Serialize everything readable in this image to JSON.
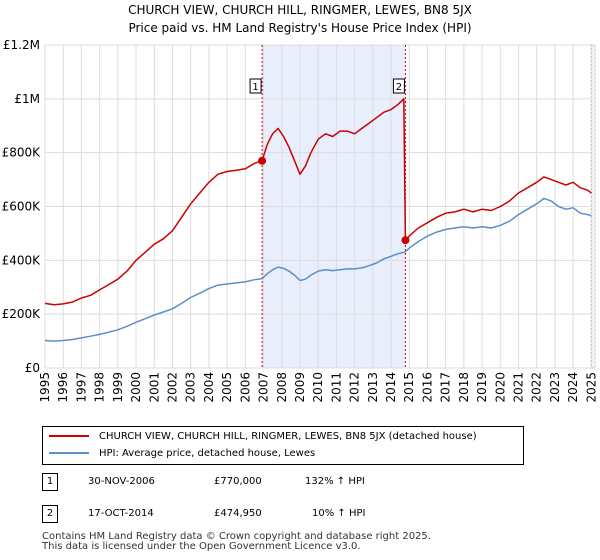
{
  "title": {
    "line1": "CHURCH VIEW, CHURCH HILL, RINGMER, LEWES, BN8 5JX",
    "line2": "Price paid vs. HM Land Registry's House Price Index (HPI)"
  },
  "colors": {
    "property": "#cc0000",
    "hpi": "#5b8fc7",
    "shade": "#e8eefb",
    "grid": "#dddddd",
    "marker_line": "#cc0000"
  },
  "chart_data": {
    "type": "line",
    "title": "CHURCH VIEW, CHURCH HILL, RINGMER, LEWES, BN8 5JX",
    "xlabel": "",
    "ylabel": "",
    "xlim": [
      1995,
      2025.2
    ],
    "ylim": [
      0,
      1200000
    ],
    "grid": true,
    "y_ticks": [
      0,
      200000,
      400000,
      600000,
      800000,
      1000000,
      1200000
    ],
    "y_tick_labels": [
      "£0",
      "£200K",
      "£400K",
      "£600K",
      "£800K",
      "£1M",
      "£1.2M"
    ],
    "x_ticks": [
      1995,
      1996,
      1997,
      1998,
      1999,
      2000,
      2001,
      2002,
      2003,
      2004,
      2005,
      2006,
      2007,
      2008,
      2009,
      2010,
      2011,
      2012,
      2013,
      2014,
      2015,
      2016,
      2017,
      2018,
      2019,
      2020,
      2021,
      2022,
      2023,
      2024,
      2025
    ],
    "x_tick_labels": [
      "1995",
      "1996",
      "1997",
      "1998",
      "1999",
      "2000",
      "2001",
      "2002",
      "2003",
      "2004",
      "2005",
      "2006",
      "2007",
      "2008",
      "2009",
      "2010",
      "2011",
      "2012",
      "2013",
      "2014",
      "2015",
      "2016",
      "2017",
      "2018",
      "2019",
      "2020",
      "2021",
      "2022",
      "2023",
      "2024",
      "2025"
    ],
    "shaded_range": [
      2006.92,
      2014.79
    ],
    "series": [
      {
        "name": "CHURCH VIEW, CHURCH HILL, RINGMER, LEWES, BN8 5JX (detached house)",
        "x": [
          1995.0,
          1995.5,
          1996.0,
          1996.5,
          1997.0,
          1997.5,
          1998.0,
          1998.5,
          1999.0,
          1999.5,
          2000.0,
          2000.5,
          2001.0,
          2001.5,
          2002.0,
          2002.5,
          2003.0,
          2003.5,
          2004.0,
          2004.5,
          2005.0,
          2005.5,
          2006.0,
          2006.5,
          2006.92,
          2007.2,
          2007.5,
          2007.8,
          2008.1,
          2008.4,
          2008.7,
          2009.0,
          2009.3,
          2009.6,
          2010.0,
          2010.4,
          2010.8,
          2011.2,
          2011.6,
          2012.0,
          2012.4,
          2012.8,
          2013.2,
          2013.6,
          2014.0,
          2014.4,
          2014.7,
          2014.79,
          2015.0,
          2015.5,
          2016.0,
          2016.5,
          2017.0,
          2017.5,
          2018.0,
          2018.5,
          2019.0,
          2019.5,
          2020.0,
          2020.5,
          2021.0,
          2021.5,
          2022.0,
          2022.4,
          2022.8,
          2023.2,
          2023.6,
          2024.0,
          2024.4,
          2024.8,
          2025.0
        ],
        "y": [
          240000,
          235000,
          238000,
          245000,
          260000,
          270000,
          290000,
          310000,
          330000,
          360000,
          400000,
          430000,
          460000,
          480000,
          510000,
          560000,
          610000,
          650000,
          690000,
          720000,
          730000,
          735000,
          740000,
          760000,
          770000,
          830000,
          870000,
          890000,
          860000,
          820000,
          770000,
          720000,
          750000,
          800000,
          850000,
          870000,
          860000,
          880000,
          880000,
          870000,
          890000,
          910000,
          930000,
          950000,
          960000,
          980000,
          1000000,
          474950,
          490000,
          520000,
          540000,
          560000,
          575000,
          580000,
          590000,
          580000,
          590000,
          585000,
          600000,
          620000,
          650000,
          670000,
          690000,
          710000,
          700000,
          690000,
          680000,
          690000,
          670000,
          660000,
          650000
        ]
      },
      {
        "name": "HPI: Average price, detached house, Lewes",
        "x": [
          1995.0,
          1995.5,
          1996.0,
          1996.5,
          1997.0,
          1997.5,
          1998.0,
          1998.5,
          1999.0,
          1999.5,
          2000.0,
          2000.5,
          2001.0,
          2001.5,
          2002.0,
          2002.5,
          2003.0,
          2003.5,
          2004.0,
          2004.5,
          2005.0,
          2005.5,
          2006.0,
          2006.5,
          2006.92,
          2007.2,
          2007.5,
          2007.8,
          2008.1,
          2008.4,
          2008.7,
          2009.0,
          2009.3,
          2009.6,
          2010.0,
          2010.4,
          2010.8,
          2011.2,
          2011.6,
          2012.0,
          2012.4,
          2012.8,
          2013.2,
          2013.6,
          2014.0,
          2014.4,
          2014.7,
          2014.79,
          2015.0,
          2015.5,
          2016.0,
          2016.5,
          2017.0,
          2017.5,
          2018.0,
          2018.5,
          2019.0,
          2019.5,
          2020.0,
          2020.5,
          2021.0,
          2021.5,
          2022.0,
          2022.4,
          2022.8,
          2023.2,
          2023.6,
          2024.0,
          2024.4,
          2024.8,
          2025.0
        ],
        "y": [
          102000,
          100000,
          102000,
          106000,
          112000,
          118000,
          125000,
          133000,
          142000,
          155000,
          170000,
          183000,
          197000,
          208000,
          220000,
          240000,
          262000,
          278000,
          295000,
          308000,
          312000,
          316000,
          320000,
          328000,
          332000,
          350000,
          365000,
          375000,
          370000,
          360000,
          345000,
          325000,
          330000,
          345000,
          360000,
          365000,
          362000,
          365000,
          368000,
          368000,
          372000,
          380000,
          390000,
          405000,
          415000,
          425000,
          430000,
          432000,
          445000,
          470000,
          490000,
          505000,
          515000,
          520000,
          525000,
          520000,
          525000,
          520000,
          530000,
          545000,
          570000,
          590000,
          610000,
          630000,
          620000,
          600000,
          590000,
          595000,
          575000,
          570000,
          565000
        ]
      }
    ],
    "annotations": [
      {
        "label": "1",
        "x": 2006.92,
        "y": 770000
      },
      {
        "label": "2",
        "x": 2014.79,
        "y": 474950
      }
    ]
  },
  "legend": {
    "property_label": "CHURCH VIEW, CHURCH HILL, RINGMER, LEWES, BN8 5JX (detached house)",
    "hpi_label": "HPI: Average price, detached house, Lewes"
  },
  "sales": [
    {
      "num": "1",
      "date": "30-NOV-2006",
      "price": "£770,000",
      "hpi": "132% ↑ HPI"
    },
    {
      "num": "2",
      "date": "17-OCT-2014",
      "price": "£474,950",
      "hpi": "10% ↑ HPI"
    }
  ],
  "footer": {
    "line1": "Contains HM Land Registry data © Crown copyright and database right 2025.",
    "line2": "This data is licensed under the Open Government Licence v3.0."
  }
}
